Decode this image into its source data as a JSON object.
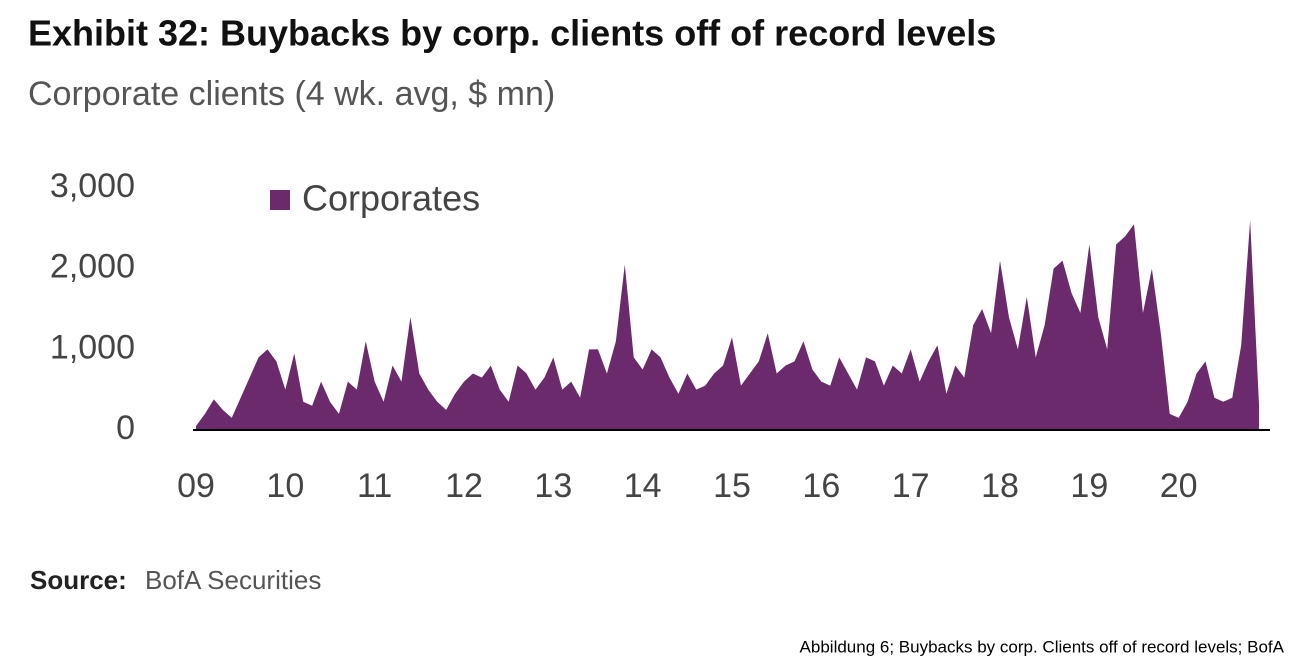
{
  "chart_data": {
    "type": "area",
    "title": "Exhibit 32: Buybacks by corp. clients off of record levels",
    "subtitle": "Corporate clients (4 wk. avg, $ mn)",
    "source_label": "Source:",
    "source": "BofA Securities",
    "caption": "Abbildung 6; Buybacks by corp. Clients off of record levels; BofA",
    "legend": "upper left",
    "x": [
      2009.0,
      2009.1,
      2009.2,
      2009.3,
      2009.4,
      2009.5,
      2009.6,
      2009.7,
      2009.8,
      2009.9,
      2010.0,
      2010.1,
      2010.2,
      2010.3,
      2010.4,
      2010.5,
      2010.6,
      2010.7,
      2010.8,
      2010.9,
      2011.0,
      2011.1,
      2011.2,
      2011.3,
      2011.4,
      2011.5,
      2011.6,
      2011.7,
      2011.8,
      2011.9,
      2012.0,
      2012.1,
      2012.2,
      2012.3,
      2012.4,
      2012.5,
      2012.6,
      2012.7,
      2012.8,
      2012.9,
      2013.0,
      2013.1,
      2013.2,
      2013.3,
      2013.4,
      2013.5,
      2013.6,
      2013.7,
      2013.8,
      2013.9,
      2014.0,
      2014.1,
      2014.2,
      2014.3,
      2014.4,
      2014.5,
      2014.6,
      2014.7,
      2014.8,
      2014.9,
      2015.0,
      2015.1,
      2015.2,
      2015.3,
      2015.4,
      2015.5,
      2015.6,
      2015.7,
      2015.8,
      2015.9,
      2016.0,
      2016.1,
      2016.2,
      2016.3,
      2016.4,
      2016.5,
      2016.6,
      2016.7,
      2016.8,
      2016.9,
      2017.0,
      2017.1,
      2017.2,
      2017.3,
      2017.4,
      2017.5,
      2017.6,
      2017.7,
      2017.8,
      2017.9,
      2018.0,
      2018.1,
      2018.2,
      2018.3,
      2018.4,
      2018.5,
      2018.6,
      2018.7,
      2018.8,
      2018.9,
      2019.0,
      2019.1,
      2019.2,
      2019.3,
      2019.4,
      2019.5,
      2019.6,
      2019.7,
      2019.8,
      2019.9,
      2020.0,
      2020.1,
      2020.2,
      2020.3,
      2020.4,
      2020.5,
      2020.6,
      2020.7,
      2020.8,
      2020.9
    ],
    "series": [
      {
        "name": "Corporates",
        "color": "#6a2a6c",
        "values": [
          50,
          200,
          380,
          250,
          150,
          400,
          650,
          900,
          1000,
          850,
          500,
          950,
          350,
          300,
          600,
          350,
          200,
          600,
          500,
          1100,
          600,
          350,
          800,
          600,
          1400,
          700,
          500,
          350,
          250,
          450,
          600,
          700,
          650,
          800,
          500,
          350,
          800,
          700,
          500,
          650,
          900,
          500,
          600,
          400,
          1000,
          1000,
          700,
          1100,
          2050,
          900,
          750,
          1000,
          900,
          650,
          450,
          700,
          500,
          550,
          700,
          800,
          1150,
          550,
          700,
          850,
          1200,
          700,
          800,
          850,
          1100,
          750,
          600,
          550,
          900,
          700,
          500,
          900,
          850,
          550,
          800,
          700,
          1000,
          600,
          850,
          1050,
          450,
          800,
          650,
          1300,
          1500,
          1200,
          2100,
          1400,
          1000,
          1650,
          900,
          1300,
          2000,
          2100,
          1700,
          1450,
          2300,
          1400,
          1000,
          2300,
          2400,
          2550,
          1450,
          2000,
          1200,
          200,
          150,
          350,
          700,
          850,
          400,
          350,
          400,
          1050,
          2600,
          300
        ]
      }
    ],
    "xlim": [
      2009,
      2021
    ],
    "xticks": [
      {
        "value": 2009,
        "label": "09"
      },
      2010,
      {
        "value": 2011,
        "label": "11"
      },
      {
        "value": 2012,
        "label": "12"
      },
      {
        "value": 2013,
        "label": "13"
      },
      {
        "value": 2014,
        "label": "14"
      },
      {
        "value": 2015,
        "label": "15"
      },
      {
        "value": 2016,
        "label": "16"
      },
      {
        "value": 2017,
        "label": "17"
      },
      {
        "value": 2018,
        "label": "18"
      },
      {
        "value": 2019,
        "label": "19"
      },
      {
        "value": 2020,
        "label": "20"
      }
    ],
    "ylim": [
      0,
      3000
    ],
    "yticks": [
      0,
      {
        "value": 1000,
        "label": "1,000"
      },
      {
        "value": 2000,
        "label": "2,000"
      },
      {
        "value": 3000,
        "label": "3,000"
      }
    ],
    "grid": false
  }
}
